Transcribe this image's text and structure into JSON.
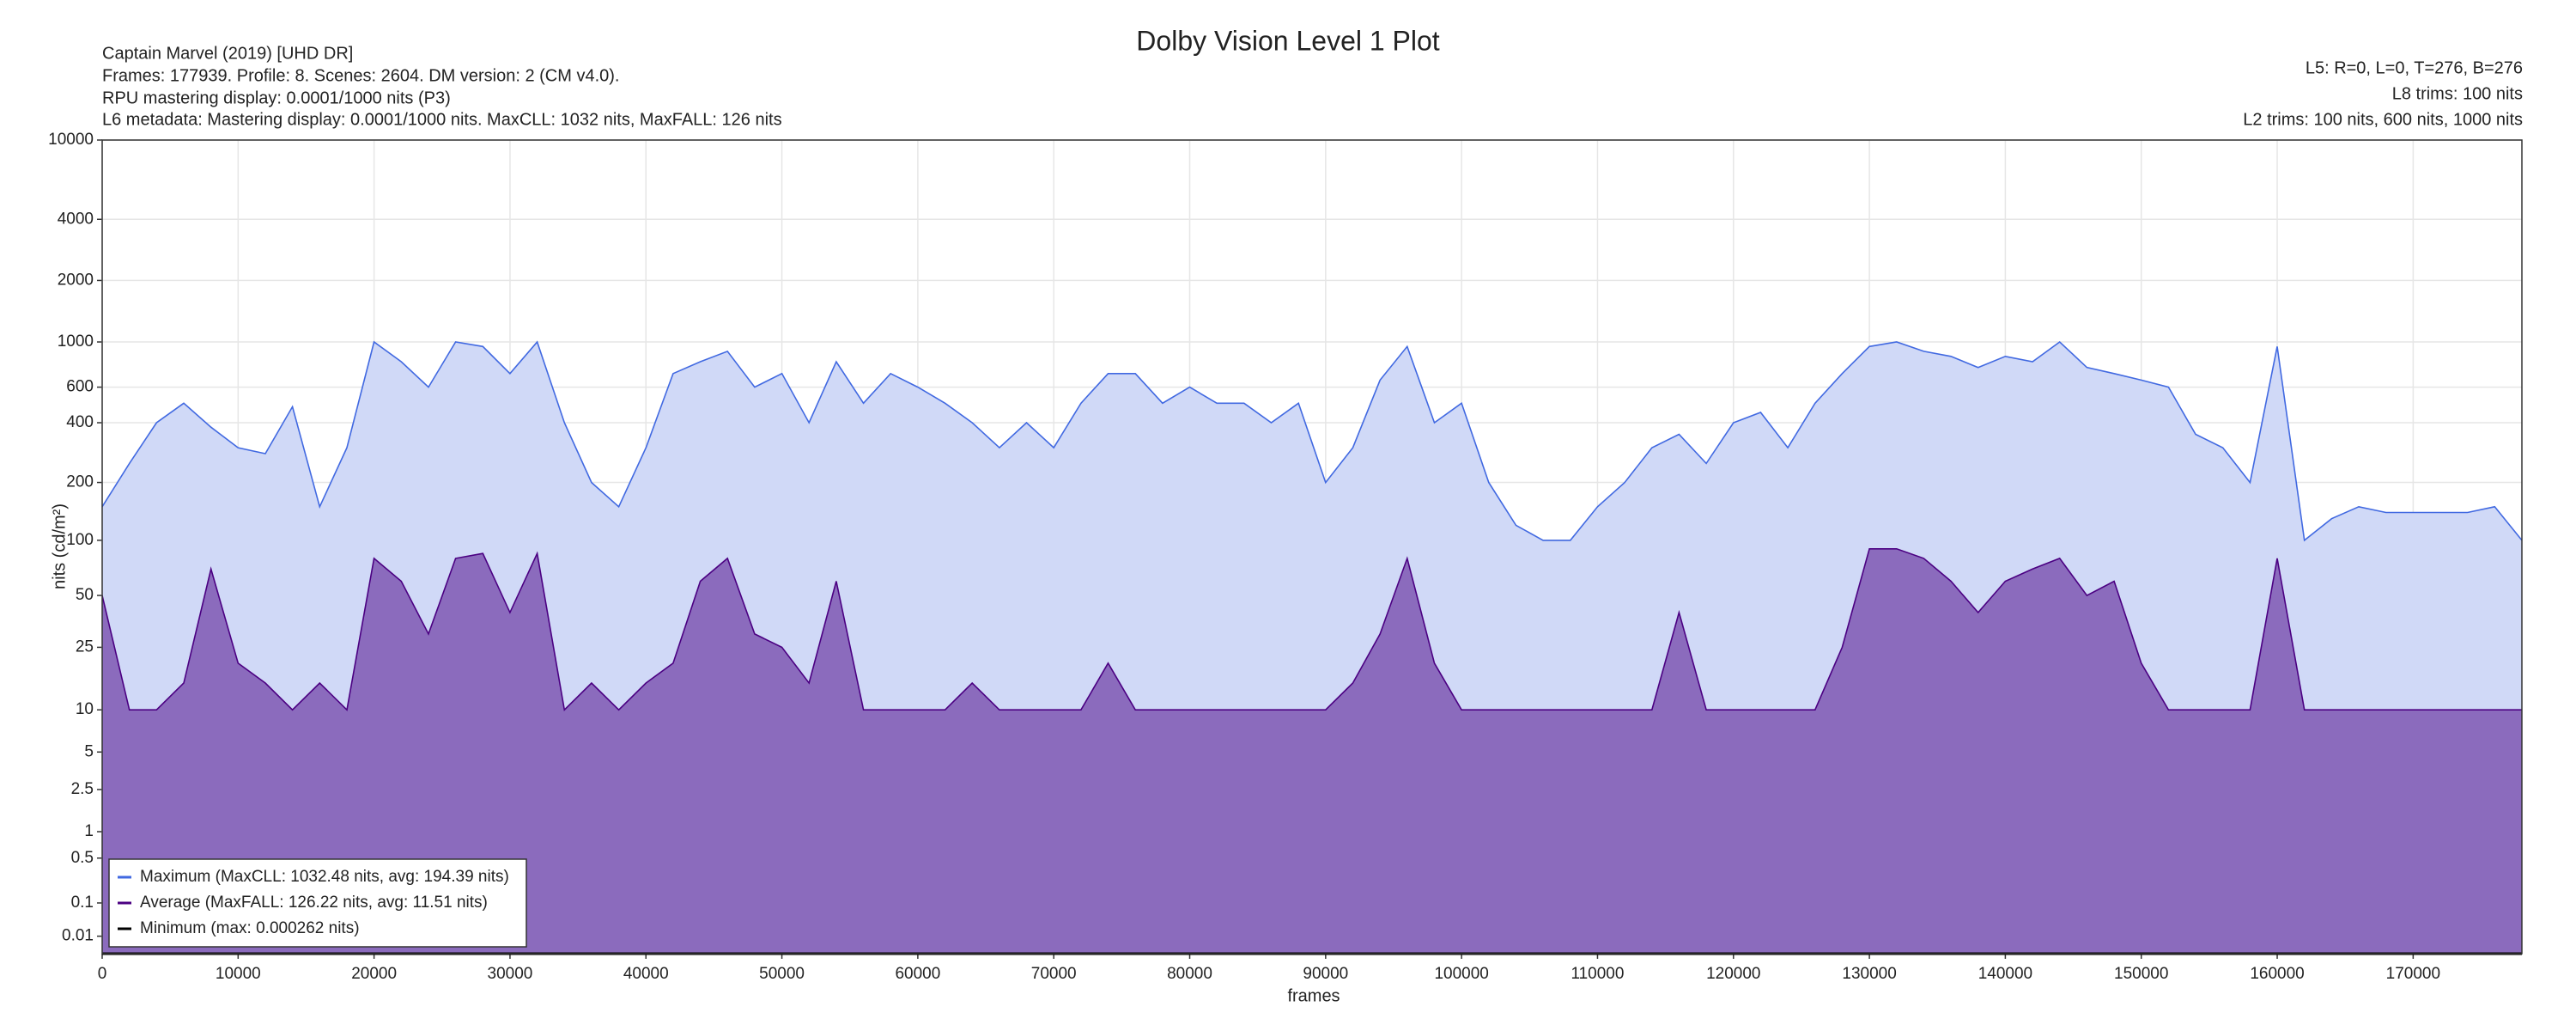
{
  "chart_data": {
    "type": "area",
    "title": "Dolby Vision Level 1 Plot",
    "info_left": [
      "Captain Marvel (2019) [UHD DR]",
      "Frames: 177939. Profile: 8. Scenes: 2604. DM version: 2 (CM v4.0).",
      "RPU mastering display: 0.0001/1000 nits  (P3)",
      "L6 metadata: Mastering display: 0.0001/1000 nits. MaxCLL: 1032 nits, MaxFALL: 126 nits"
    ],
    "info_right": [
      "L5: R=0, L=0, T=276, B=276",
      "L8 trims: 100 nits",
      "L2 trims: 100 nits, 600 nits, 1000 nits"
    ],
    "x_label": "frames",
    "y_label": "nits (cd/m²)",
    "y_scale": "pq",
    "grid": true,
    "legend": "lower left",
    "x": [
      0,
      2000,
      4000,
      6000,
      8000,
      10000,
      12000,
      14000,
      16000,
      18000,
      20000,
      22000,
      24000,
      26000,
      28000,
      30000,
      32000,
      34000,
      36000,
      38000,
      40000,
      42000,
      44000,
      46000,
      48000,
      50000,
      52000,
      54000,
      56000,
      58000,
      60000,
      62000,
      64000,
      66000,
      68000,
      70000,
      72000,
      74000,
      76000,
      78000,
      80000,
      82000,
      84000,
      86000,
      88000,
      90000,
      92000,
      94000,
      96000,
      98000,
      100000,
      102000,
      104000,
      106000,
      108000,
      110000,
      112000,
      114000,
      116000,
      118000,
      120000,
      122000,
      124000,
      126000,
      128000,
      130000,
      132000,
      134000,
      136000,
      138000,
      140000,
      142000,
      144000,
      146000,
      148000,
      150000,
      152000,
      154000,
      156000,
      158000,
      160000,
      162000,
      164000,
      166000,
      168000,
      170000,
      172000,
      174000,
      176000,
      178000
    ],
    "series": [
      {
        "name": "Maximum (MaxCLL: 1032.48 nits, avg: 194.39 nits)",
        "color": "#4169e1",
        "fill": "#d0d9f7",
        "values": [
          150,
          250,
          400,
          500,
          380,
          300,
          280,
          480,
          150,
          300,
          1000,
          800,
          600,
          1000,
          950,
          700,
          1000,
          400,
          200,
          150,
          300,
          700,
          800,
          900,
          600,
          700,
          400,
          800,
          500,
          700,
          600,
          500,
          400,
          300,
          400,
          300,
          500,
          700,
          700,
          500,
          600,
          500,
          500,
          400,
          500,
          200,
          300,
          650,
          950,
          400,
          500,
          200,
          120,
          100,
          100,
          150,
          200,
          300,
          350,
          250,
          400,
          450,
          300,
          500,
          700,
          950,
          1000,
          900,
          850,
          750,
          850,
          800,
          1000,
          750,
          700,
          650,
          600,
          350,
          300,
          200,
          950,
          100,
          130,
          150,
          140,
          140,
          140,
          140,
          150,
          100
        ]
      },
      {
        "name": "Average (MaxFALL: 126.22 nits, avg: 11.51 nits)",
        "color": "#4b0082",
        "fill": "#8b6bbd",
        "values": [
          50,
          10,
          10,
          15,
          70,
          20,
          15,
          10,
          15,
          10,
          80,
          60,
          30,
          80,
          85,
          40,
          85,
          10,
          15,
          10,
          15,
          20,
          60,
          80,
          30,
          25,
          15,
          60,
          10,
          10,
          10,
          10,
          15,
          10,
          10,
          10,
          10,
          20,
          10,
          10,
          10,
          10,
          10,
          10,
          10,
          10,
          15,
          30,
          80,
          20,
          10,
          10,
          10,
          10,
          10,
          10,
          10,
          10,
          40,
          10,
          10,
          10,
          10,
          10,
          25,
          90,
          90,
          80,
          60,
          40,
          60,
          70,
          80,
          50,
          60,
          20,
          10,
          10,
          10,
          10,
          80,
          10,
          10,
          10,
          10,
          10,
          10,
          10,
          10,
          10
        ]
      },
      {
        "name": "Minimum (max: 0.000262 nits)",
        "color": "#000000",
        "values": [
          0,
          0,
          0,
          0,
          0,
          0,
          0,
          0,
          0,
          0,
          0,
          0,
          0,
          0,
          0,
          0,
          0,
          0,
          0,
          0,
          0,
          0,
          0,
          0,
          0,
          0,
          0,
          0,
          0,
          0,
          0,
          0,
          0,
          0,
          0,
          0,
          0,
          0,
          0,
          0,
          0,
          0,
          0,
          0,
          0,
          0,
          0,
          0,
          0,
          0,
          0,
          0,
          0,
          0,
          0,
          0,
          0,
          0,
          0,
          0,
          0,
          0,
          0,
          0,
          0,
          0,
          0,
          0,
          0,
          0,
          0,
          0,
          0,
          0,
          0,
          0,
          0,
          0,
          0,
          0,
          0,
          0,
          0,
          0,
          0,
          0,
          0,
          0,
          0,
          0
        ]
      }
    ],
    "xlim": [
      0,
      178000
    ],
    "xticks": [
      0,
      10000,
      20000,
      30000,
      40000,
      50000,
      60000,
      70000,
      80000,
      90000,
      100000,
      110000,
      120000,
      130000,
      140000,
      150000,
      160000,
      170000
    ],
    "ylim": [
      0,
      10000
    ],
    "yticks": [
      0.01,
      0.1,
      0.5,
      1,
      2.5,
      5,
      10,
      25,
      50,
      100,
      200,
      400,
      600,
      1000,
      2000,
      4000,
      10000
    ]
  }
}
